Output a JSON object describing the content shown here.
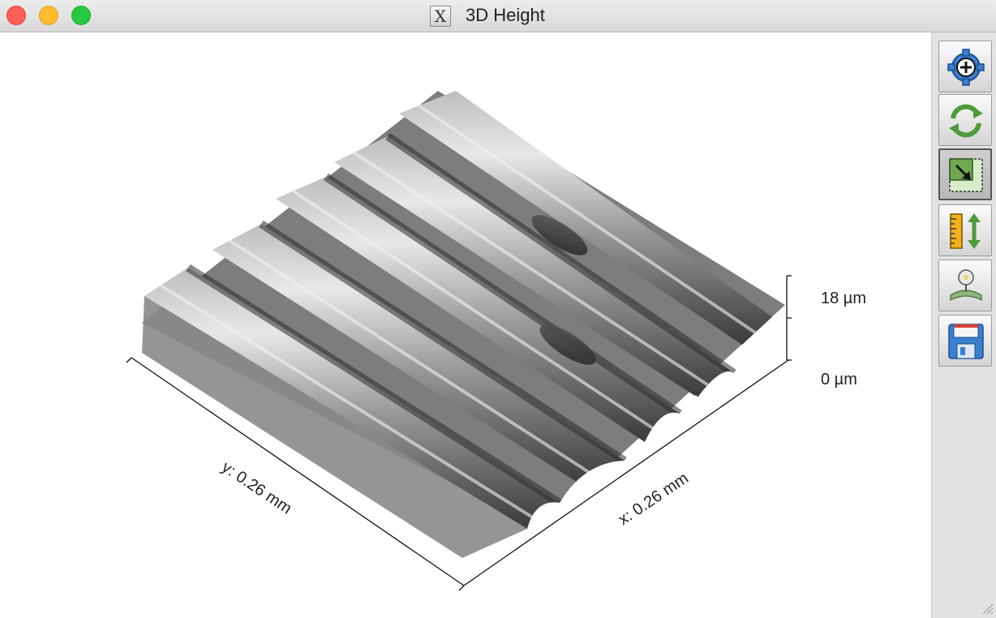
{
  "window": {
    "title": "3D Height"
  },
  "plot": {
    "z_axis": {
      "max_label": "18 µm",
      "min_label": "0 µm"
    },
    "x_axis": {
      "label": "x: 0.26 mm"
    },
    "y_axis": {
      "label": "y: 0.26 mm"
    }
  },
  "toolbar": {
    "buttons": [
      {
        "name": "zoom-in",
        "icon": "gear-plus-icon",
        "active": false
      },
      {
        "name": "rotate",
        "icon": "rotate-arrows-icon",
        "active": false
      },
      {
        "name": "fit-view",
        "icon": "fit-arrow-icon",
        "active": true
      },
      {
        "name": "z-scale",
        "icon": "ruler-scale-icon",
        "active": false
      },
      {
        "name": "light",
        "icon": "lamp-icon",
        "active": false
      },
      {
        "name": "save",
        "icon": "floppy-disk-icon",
        "active": false
      }
    ]
  }
}
